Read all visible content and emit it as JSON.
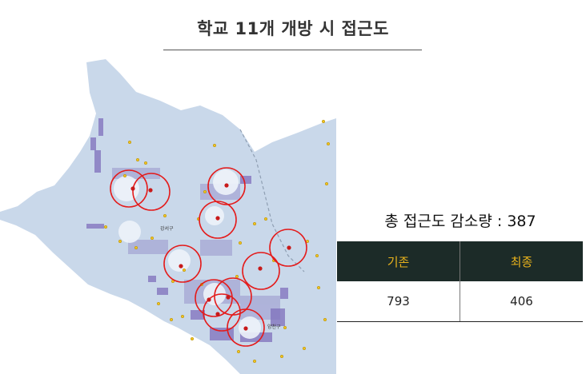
{
  "title": "학교 11개 개방 시 접근도",
  "map": {
    "district_labels": [
      "강서구",
      "양천구"
    ],
    "colors": {
      "land": "#c9d8ea",
      "density": "#7f6fbc",
      "school_dot": "#f2c320",
      "opened_school": "#c81a1a",
      "coverage_ring": "#e41b1b"
    }
  },
  "summary": {
    "text": "총 접근도 감소량 : 387"
  },
  "table": {
    "headers": [
      "기존",
      "최종"
    ],
    "values": [
      "793",
      "406"
    ]
  }
}
